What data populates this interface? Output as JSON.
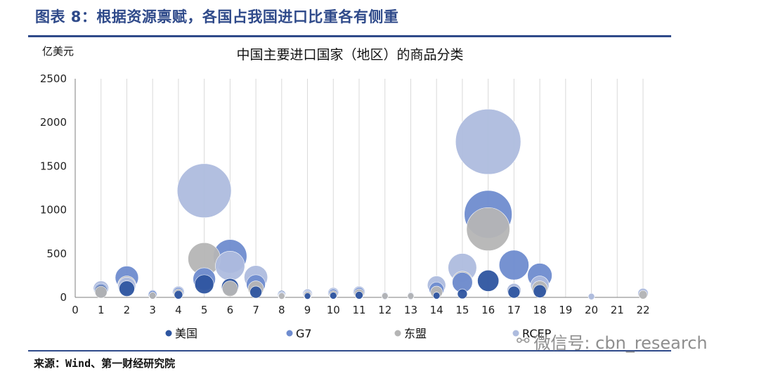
{
  "figure_title": "图表 8：根据资源禀赋，各国占我国进口比重各有侧重",
  "source": "来源：Wind、第一财经研究院",
  "watermark": "微信号: cbn_research",
  "colors": {
    "brand": "#2f4a8a",
    "grid": "#d9d9d9",
    "axis": "#7f7f7f"
  },
  "chart_data": {
    "type": "bubble",
    "title": "中国主要进口国家（地区）的商品分类",
    "ylabel": "亿美元",
    "xlabel": "",
    "xlim": [
      0,
      22
    ],
    "ylim": [
      0,
      2500
    ],
    "x_ticks": [
      0,
      1,
      2,
      3,
      4,
      5,
      6,
      7,
      8,
      9,
      10,
      11,
      12,
      13,
      14,
      15,
      16,
      17,
      18,
      19,
      20,
      21,
      22
    ],
    "y_ticks": [
      0,
      500,
      1000,
      1500,
      2000,
      2500
    ],
    "grid": "vertical",
    "legend_position": "bottom",
    "series": [
      {
        "name": "美国",
        "color": "#2e55a0",
        "points": [
          {
            "x": 1,
            "y": 70
          },
          {
            "x": 2,
            "y": 100
          },
          {
            "x": 3,
            "y": 20
          },
          {
            "x": 4,
            "y": 30
          },
          {
            "x": 5,
            "y": 150
          },
          {
            "x": 6,
            "y": 120
          },
          {
            "x": 7,
            "y": 60
          },
          {
            "x": 8,
            "y": 30
          },
          {
            "x": 9,
            "y": 15
          },
          {
            "x": 10,
            "y": 20
          },
          {
            "x": 11,
            "y": 25
          },
          {
            "x": 12,
            "y": 10
          },
          {
            "x": 13,
            "y": 10
          },
          {
            "x": 14,
            "y": 20
          },
          {
            "x": 15,
            "y": 40
          },
          {
            "x": 16,
            "y": 190
          },
          {
            "x": 17,
            "y": 60
          },
          {
            "x": 18,
            "y": 70
          }
        ]
      },
      {
        "name": "G7",
        "color": "#6f8ccf",
        "points": [
          {
            "x": 1,
            "y": 80
          },
          {
            "x": 2,
            "y": 225
          },
          {
            "x": 3,
            "y": 30
          },
          {
            "x": 4,
            "y": 50
          },
          {
            "x": 5,
            "y": 210
          },
          {
            "x": 6,
            "y": 470
          },
          {
            "x": 7,
            "y": 150
          },
          {
            "x": 8,
            "y": 25
          },
          {
            "x": 9,
            "y": 30
          },
          {
            "x": 10,
            "y": 40
          },
          {
            "x": 11,
            "y": 50
          },
          {
            "x": 12,
            "y": 15
          },
          {
            "x": 13,
            "y": 15
          },
          {
            "x": 14,
            "y": 90
          },
          {
            "x": 15,
            "y": 170
          },
          {
            "x": 16,
            "y": 950
          },
          {
            "x": 17,
            "y": 370
          },
          {
            "x": 18,
            "y": 250
          }
        ]
      },
      {
        "name": "东盟",
        "color": "#b5b5b5",
        "points": [
          {
            "x": 1,
            "y": 60
          },
          {
            "x": 2,
            "y": 140
          },
          {
            "x": 3,
            "y": 20
          },
          {
            "x": 4,
            "y": 40
          },
          {
            "x": 5,
            "y": 440
          },
          {
            "x": 6,
            "y": 100
          },
          {
            "x": 7,
            "y": 100
          },
          {
            "x": 8,
            "y": 15
          },
          {
            "x": 9,
            "y": 25
          },
          {
            "x": 10,
            "y": 30
          },
          {
            "x": 11,
            "y": 40
          },
          {
            "x": 12,
            "y": 15
          },
          {
            "x": 13,
            "y": 15
          },
          {
            "x": 14,
            "y": 60
          },
          {
            "x": 15,
            "y": 180
          },
          {
            "x": 16,
            "y": 780
          },
          {
            "x": 17,
            "y": 80
          },
          {
            "x": 18,
            "y": 100
          },
          {
            "x": 20,
            "y": 5
          },
          {
            "x": 22,
            "y": 30
          }
        ]
      },
      {
        "name": "RCEP",
        "color": "#aebcde",
        "points": [
          {
            "x": 1,
            "y": 100
          },
          {
            "x": 2,
            "y": 130
          },
          {
            "x": 3,
            "y": 35
          },
          {
            "x": 4,
            "y": 60
          },
          {
            "x": 5,
            "y": 1220
          },
          {
            "x": 6,
            "y": 360
          },
          {
            "x": 7,
            "y": 230
          },
          {
            "x": 8,
            "y": 20
          },
          {
            "x": 9,
            "y": 40
          },
          {
            "x": 10,
            "y": 50
          },
          {
            "x": 11,
            "y": 60
          },
          {
            "x": 12,
            "y": 20
          },
          {
            "x": 13,
            "y": 20
          },
          {
            "x": 14,
            "y": 140
          },
          {
            "x": 15,
            "y": 340
          },
          {
            "x": 16,
            "y": 1780
          },
          {
            "x": 17,
            "y": 80
          },
          {
            "x": 18,
            "y": 140
          },
          {
            "x": 20,
            "y": 10
          },
          {
            "x": 22,
            "y": 45
          }
        ]
      }
    ],
    "legend": [
      "美国",
      "G7",
      "东盟",
      "RCEP"
    ]
  }
}
